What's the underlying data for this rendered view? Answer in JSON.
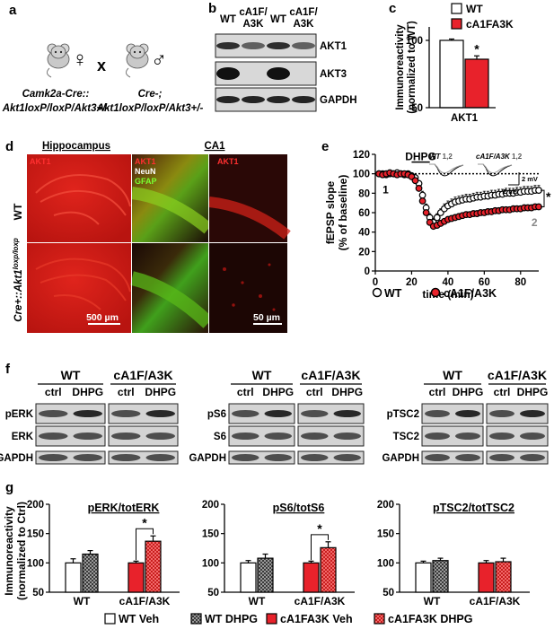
{
  "panels": {
    "a": {
      "letter": "a",
      "female_symbol": "♀",
      "male_symbol": "♂",
      "cross": "x",
      "left_line1": "Camk2a-Cre::",
      "left_line2": "Akt1loxP/loxP/Akt3+/-",
      "right_line1": "Cre-;",
      "right_line2": "Akt1loxP/loxP/Akt3+/-"
    },
    "b": {
      "letter": "b",
      "lanes": [
        "WT",
        "cA1F/\nA3K",
        "WT",
        "cA1F/\nA3K"
      ],
      "bands": [
        "AKT1",
        "AKT3",
        "GAPDH"
      ]
    },
    "d": {
      "letter": "d",
      "col_hippocampus": "Hippocampus",
      "col_ca1": "CA1",
      "row_wt": "WT",
      "row_cre": "Cre+::Akt1",
      "row_cre_sup": "loxp/loxp",
      "tag_akt1": "AKT1",
      "tag_neun": "NeuN",
      "tag_gfap": "GFAP",
      "scale_left": "500 µm",
      "scale_right": "50 µm"
    },
    "f": {
      "letter": "f",
      "groups": [
        "WT",
        "cA1F/A3K"
      ],
      "conds": [
        "ctrl",
        "DHPG"
      ],
      "blots": [
        {
          "bands": [
            "pERK",
            "ERK",
            "GAPDH"
          ]
        },
        {
          "bands": [
            "pS6",
            "S6",
            "GAPDH"
          ]
        },
        {
          "bands": [
            "pTSC2",
            "TSC2",
            "GAPDH"
          ]
        }
      ]
    },
    "g": {
      "letter": "g",
      "legend": [
        "WT Veh",
        "WT DHPG",
        "cA1FA3K Veh",
        "cA1FA3K DHPG"
      ]
    }
  },
  "chart_data": [
    {
      "id": "c",
      "type": "bar",
      "letter": "c",
      "categories": [
        "AKT1"
      ],
      "series": [
        {
          "name": "WT",
          "values": [
            100
          ],
          "error": [
            1
          ]
        },
        {
          "name": "cA1FA3K",
          "values": [
            86
          ],
          "error": [
            2.5
          ]
        }
      ],
      "ylabel": "Immunoreactivity\n(normalized to WT)",
      "ylim": [
        50,
        110
      ],
      "yticks": [
        50,
        100
      ],
      "xlabel": "AKT1",
      "significance": "*",
      "colors": {
        "WT": "#ffffff",
        "cA1FA3K": "#e8222b"
      }
    },
    {
      "id": "e",
      "type": "scatter",
      "letter": "e",
      "xlabel": "time (min)",
      "ylabel": "fEPSP slope\n(% of baseline)",
      "xlim": [
        0,
        90
      ],
      "ylim": [
        0,
        120
      ],
      "xticks": [
        0,
        20,
        40,
        60,
        80
      ],
      "yticks": [
        0,
        20,
        40,
        60,
        80,
        100,
        120
      ],
      "drug": "DHPG",
      "drug_window": [
        20,
        30
      ],
      "baseline": 100,
      "significance": "*",
      "series": [
        {
          "name": "WT",
          "x": [
            2,
            4,
            6,
            8,
            10,
            12,
            14,
            16,
            18,
            20,
            22,
            24,
            26,
            28,
            30,
            32,
            34,
            36,
            38,
            40,
            42,
            44,
            46,
            48,
            50,
            52,
            54,
            56,
            58,
            60,
            62,
            64,
            66,
            68,
            70,
            72,
            74,
            76,
            78,
            80,
            82,
            84,
            86,
            88,
            90
          ],
          "y": [
            100,
            100,
            99,
            100,
            100,
            101,
            100,
            99,
            100,
            98,
            96,
            90,
            78,
            65,
            55,
            50,
            55,
            60,
            64,
            67,
            69,
            71,
            72,
            73,
            74,
            74,
            75,
            76,
            76,
            77,
            77,
            78,
            78,
            79,
            79,
            80,
            80,
            80,
            81,
            81,
            82,
            82,
            82,
            83,
            83
          ],
          "error": [
            1,
            1,
            1,
            1,
            1,
            1,
            1,
            1,
            1,
            1,
            2,
            3,
            4,
            4,
            4,
            4,
            4,
            4,
            5,
            5,
            5,
            5,
            5,
            5,
            5,
            5,
            5,
            5,
            5,
            5,
            5,
            5,
            5,
            5,
            5,
            5,
            5,
            5,
            5,
            5,
            5,
            5,
            5,
            5,
            5
          ]
        },
        {
          "name": "cA1F/A3K",
          "x": [
            2,
            4,
            6,
            8,
            10,
            12,
            14,
            16,
            18,
            20,
            22,
            24,
            26,
            28,
            30,
            32,
            34,
            36,
            38,
            40,
            42,
            44,
            46,
            48,
            50,
            52,
            54,
            56,
            58,
            60,
            62,
            64,
            66,
            68,
            70,
            72,
            74,
            76,
            78,
            80,
            82,
            84,
            86,
            88,
            90
          ],
          "y": [
            100,
            99,
            100,
            101,
            100,
            99,
            100,
            100,
            99,
            97,
            93,
            85,
            72,
            60,
            50,
            46,
            47,
            49,
            51,
            53,
            54,
            55,
            56,
            57,
            58,
            58,
            59,
            59,
            60,
            60,
            61,
            61,
            62,
            62,
            63,
            63,
            63,
            64,
            64,
            64,
            65,
            65,
            65,
            66,
            66
          ],
          "error": [
            1,
            1,
            1,
            1,
            1,
            1,
            1,
            1,
            1,
            1,
            2,
            3,
            4,
            4,
            3,
            3,
            3,
            3,
            3,
            3,
            3,
            3,
            3,
            3,
            3,
            3,
            3,
            3,
            3,
            3,
            3,
            3,
            3,
            3,
            3,
            3,
            3,
            3,
            3,
            3,
            3,
            3,
            3,
            3,
            3
          ]
        }
      ],
      "inset": {
        "wt_label": "WT",
        "mut_label": "cA1F/A3K",
        "trace_ids": "1,2",
        "scale_v": "2 mV",
        "scale_t": "2 ms",
        "marker_1": "1",
        "marker_2": "2"
      },
      "legend": [
        "WT",
        "cA1F/A3K"
      ]
    },
    {
      "id": "g1",
      "type": "bar",
      "title": "pERK/totERK",
      "categories": [
        "WT",
        "cA1F/A3K"
      ],
      "series": [
        {
          "name": "WT Veh",
          "values": [
            100,
            null
          ],
          "error": [
            7,
            null
          ]
        },
        {
          "name": "WT DHPG",
          "values": [
            115,
            null
          ],
          "error": [
            6,
            null
          ]
        },
        {
          "name": "cA1FA3K Veh",
          "values": [
            null,
            100
          ],
          "error": [
            null,
            3
          ]
        },
        {
          "name": "cA1FA3K DHPG",
          "values": [
            null,
            137
          ],
          "error": [
            null,
            9
          ]
        }
      ],
      "ylabel": "Immunoreactivity\n(normalized to Ctrl)",
      "ylim": [
        50,
        200
      ],
      "yticks": [
        50,
        100,
        150,
        200
      ],
      "significance": "*"
    },
    {
      "id": "g2",
      "type": "bar",
      "title": "pS6/totS6",
      "categories": [
        "WT",
        "cA1F/A3K"
      ],
      "series": [
        {
          "name": "WT Veh",
          "values": [
            100,
            null
          ],
          "error": [
            4,
            null
          ]
        },
        {
          "name": "WT DHPG",
          "values": [
            108,
            null
          ],
          "error": [
            7,
            null
          ]
        },
        {
          "name": "cA1FA3K Veh",
          "values": [
            null,
            100
          ],
          "error": [
            null,
            3
          ]
        },
        {
          "name": "cA1FA3K DHPG",
          "values": [
            null,
            126
          ],
          "error": [
            null,
            10
          ]
        }
      ],
      "ylim": [
        50,
        200
      ],
      "yticks": [
        50,
        100,
        150,
        200
      ],
      "significance": "*"
    },
    {
      "id": "g3",
      "type": "bar",
      "title": "pTSC2/totTSC2",
      "categories": [
        "WT",
        "cA1F/A3K"
      ],
      "series": [
        {
          "name": "WT Veh",
          "values": [
            100,
            null
          ],
          "error": [
            3,
            null
          ]
        },
        {
          "name": "WT DHPG",
          "values": [
            104,
            null
          ],
          "error": [
            4,
            null
          ]
        },
        {
          "name": "cA1FA3K Veh",
          "values": [
            null,
            100
          ],
          "error": [
            null,
            4
          ]
        },
        {
          "name": "cA1FA3K DHPG",
          "values": [
            null,
            102
          ],
          "error": [
            null,
            6
          ]
        }
      ],
      "ylim": [
        50,
        200
      ],
      "yticks": [
        50,
        100,
        150,
        200
      ],
      "significance": ""
    }
  ]
}
